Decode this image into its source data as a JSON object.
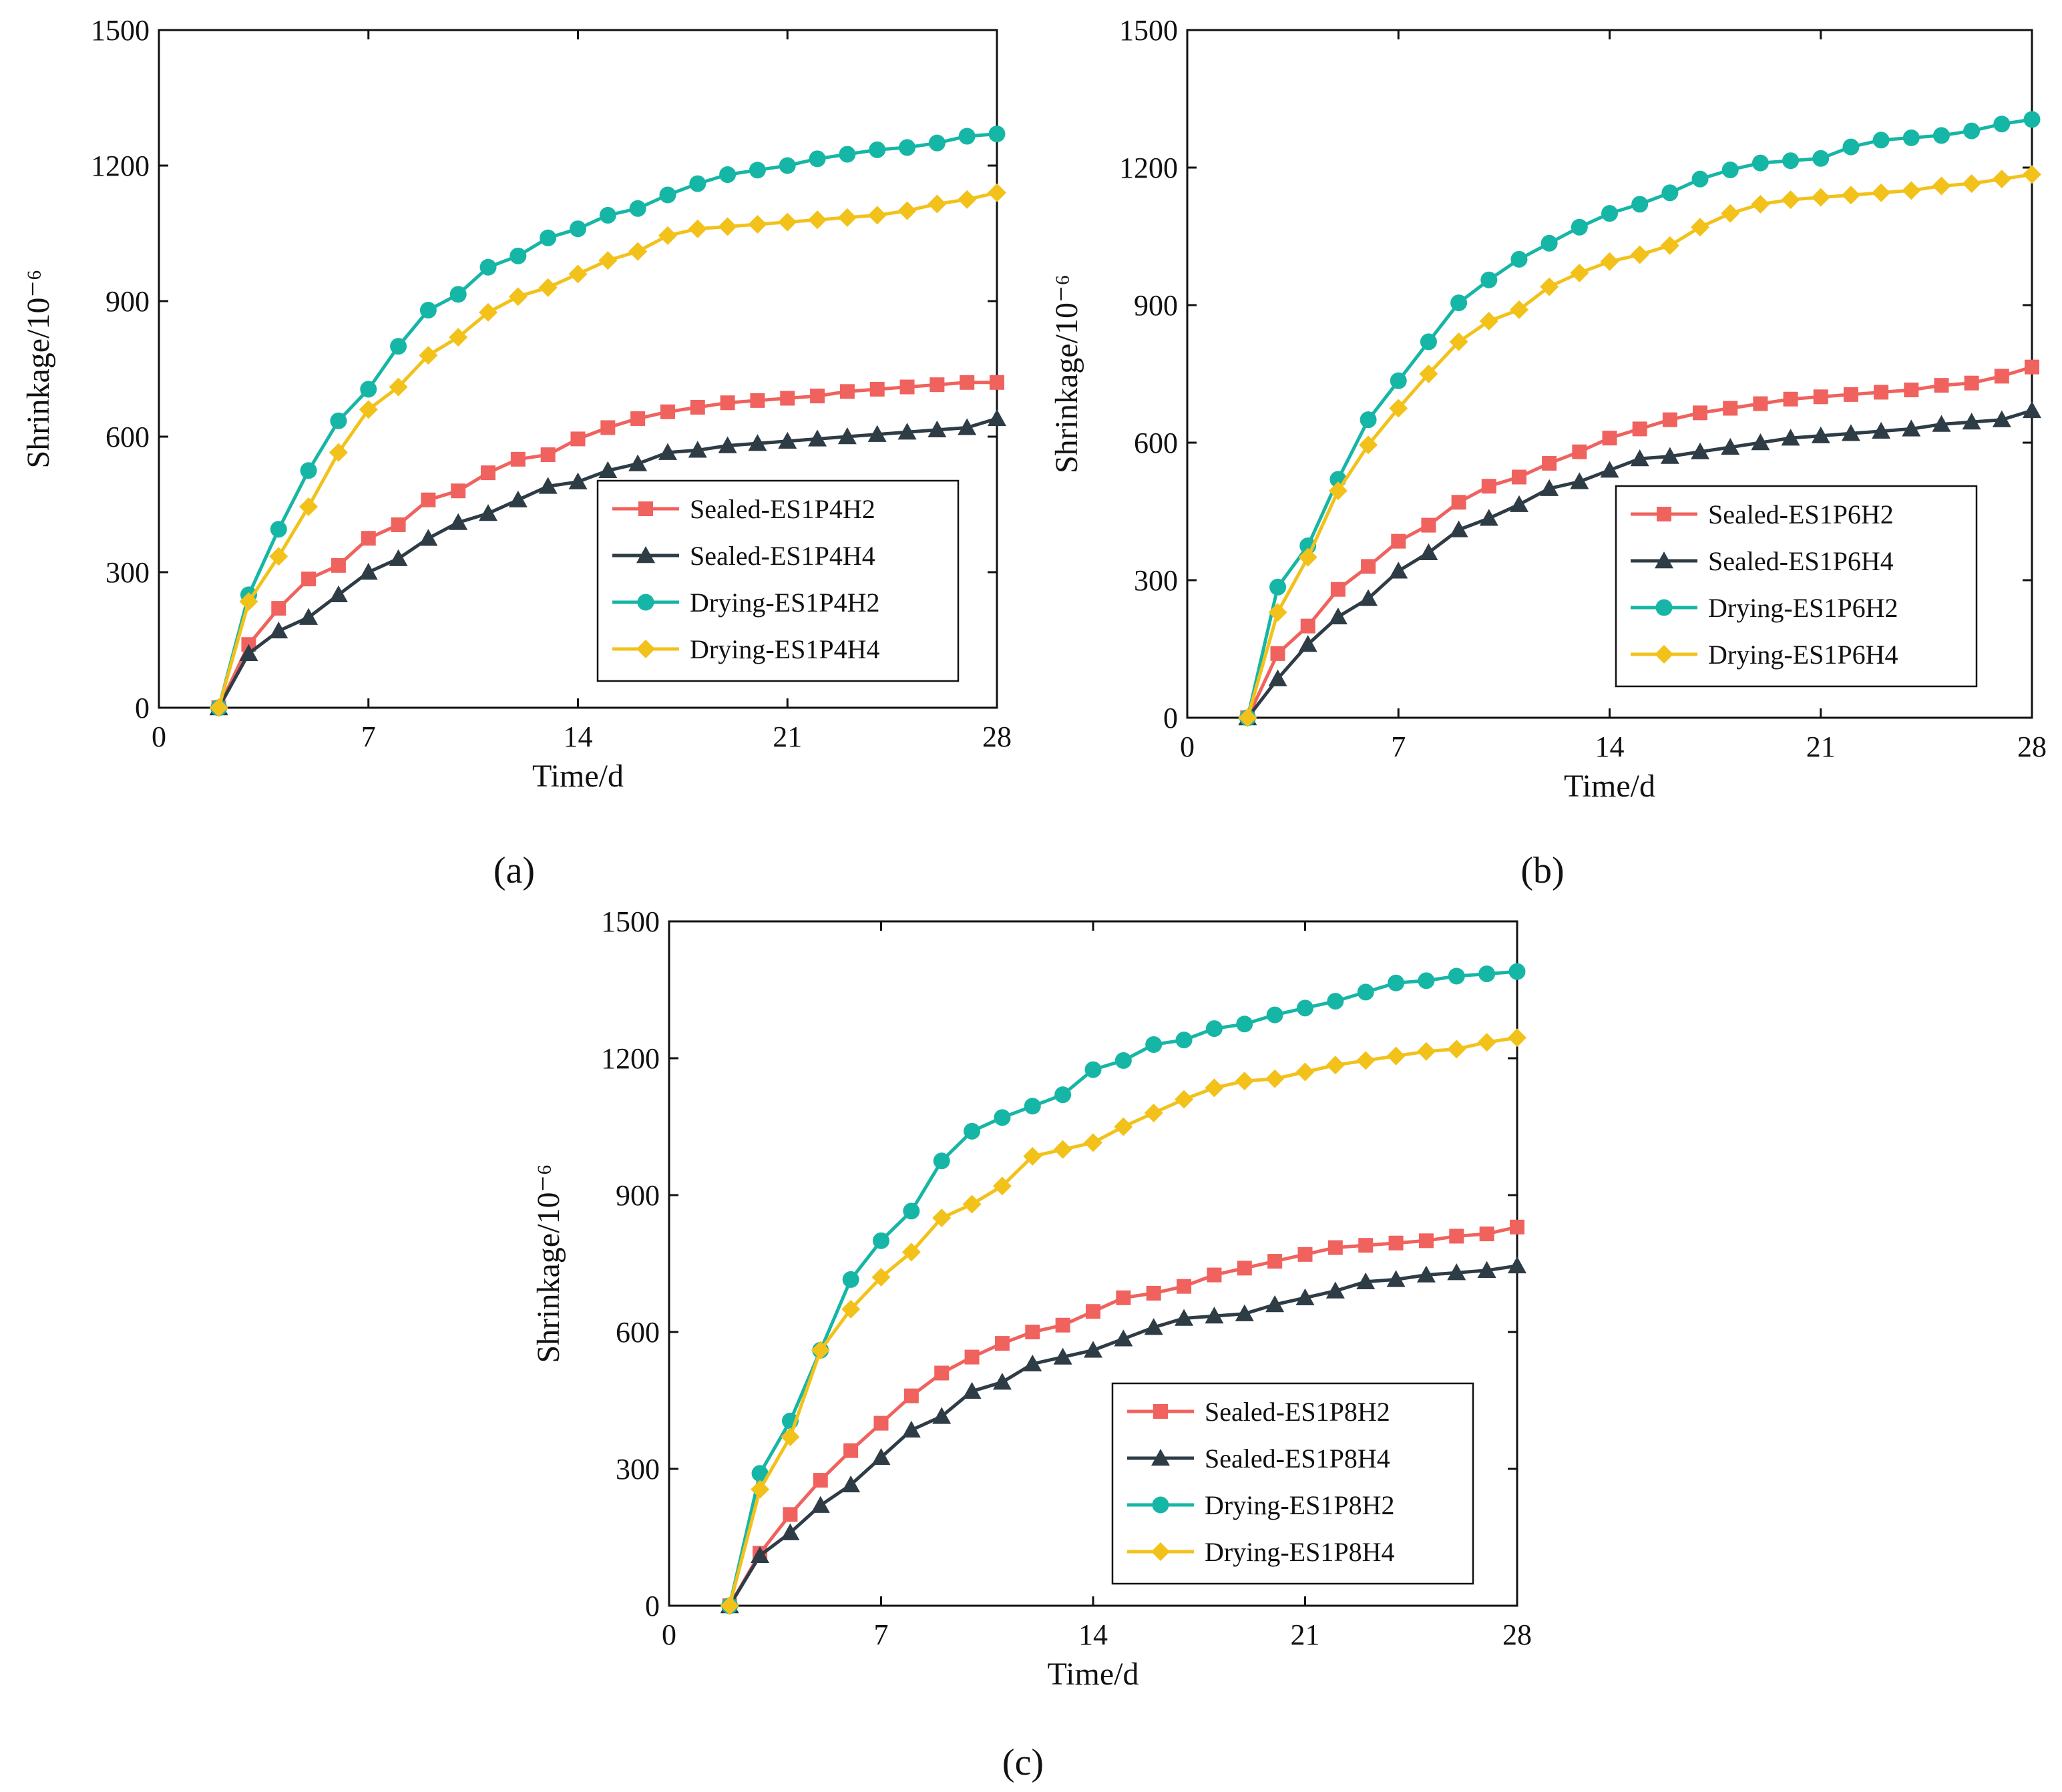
{
  "figure": {
    "panel_labels": [
      "(a)",
      "(b)",
      "(c)"
    ]
  },
  "colors": {
    "sealed_h2": "#F0625E",
    "sealed_h4": "#2E3C46",
    "drying_h2": "#16B6A6",
    "drying_h4": "#F2C21B"
  },
  "chart_data": [
    {
      "type": "line",
      "panel": "(a)",
      "xlabel": "Time/d",
      "ylabel": "Shrinkage/10⁻⁶",
      "xlim": [
        0,
        28
      ],
      "ylim": [
        0,
        1500
      ],
      "xticks": [
        0,
        7,
        14,
        21,
        28
      ],
      "yticks": [
        0,
        300,
        600,
        900,
        1200,
        1500
      ],
      "legend_position": "lower-right",
      "x": [
        2,
        3,
        4,
        5,
        6,
        7,
        8,
        9,
        10,
        11,
        12,
        13,
        14,
        15,
        16,
        17,
        18,
        19,
        20,
        21,
        22,
        23,
        24,
        25,
        26,
        27,
        28
      ],
      "series": [
        {
          "name": "Sealed-ES1P4H2",
          "marker": "square",
          "color_key": "sealed_h2",
          "values": [
            0,
            140,
            220,
            285,
            315,
            375,
            405,
            460,
            480,
            520,
            550,
            560,
            595,
            620,
            640,
            655,
            665,
            675,
            680,
            685,
            690,
            700,
            705,
            710,
            715,
            720,
            720
          ]
        },
        {
          "name": "Sealed-ES1P4H4",
          "marker": "triangle",
          "color_key": "sealed_h4",
          "values": [
            0,
            120,
            170,
            200,
            250,
            300,
            330,
            375,
            410,
            430,
            460,
            490,
            500,
            525,
            540,
            565,
            570,
            580,
            585,
            590,
            595,
            600,
            605,
            610,
            615,
            620,
            640
          ]
        },
        {
          "name": "Drying-ES1P4H2",
          "marker": "circle",
          "color_key": "drying_h2",
          "values": [
            0,
            250,
            395,
            525,
            635,
            705,
            800,
            880,
            915,
            975,
            1000,
            1040,
            1060,
            1090,
            1105,
            1135,
            1160,
            1180,
            1190,
            1200,
            1215,
            1225,
            1235,
            1240,
            1250,
            1265,
            1270
          ]
        },
        {
          "name": "Drying-ES1P4H4",
          "marker": "diamond",
          "color_key": "drying_h4",
          "values": [
            0,
            235,
            335,
            445,
            565,
            660,
            710,
            780,
            820,
            875,
            910,
            930,
            960,
            990,
            1010,
            1045,
            1060,
            1065,
            1070,
            1075,
            1080,
            1085,
            1090,
            1100,
            1115,
            1125,
            1140
          ]
        }
      ]
    },
    {
      "type": "line",
      "panel": "(b)",
      "xlabel": "Time/d",
      "ylabel": "Shrinkage/10⁻⁶",
      "xlim": [
        0,
        28
      ],
      "ylim": [
        0,
        1500
      ],
      "xticks": [
        0,
        7,
        14,
        21,
        28
      ],
      "yticks": [
        0,
        300,
        600,
        900,
        1200,
        1500
      ],
      "legend_position": "lower-right",
      "x": [
        2,
        3,
        4,
        5,
        6,
        7,
        8,
        9,
        10,
        11,
        12,
        13,
        14,
        15,
        16,
        17,
        18,
        19,
        20,
        21,
        22,
        23,
        24,
        25,
        26,
        27,
        28
      ],
      "series": [
        {
          "name": "Sealed-ES1P6H2",
          "marker": "square",
          "color_key": "sealed_h2",
          "values": [
            0,
            140,
            200,
            280,
            330,
            385,
            420,
            470,
            505,
            525,
            555,
            580,
            610,
            630,
            650,
            665,
            675,
            685,
            695,
            700,
            705,
            710,
            715,
            725,
            730,
            745,
            765
          ]
        },
        {
          "name": "Sealed-ES1P6H4",
          "marker": "triangle",
          "color_key": "sealed_h4",
          "values": [
            0,
            85,
            160,
            220,
            260,
            320,
            360,
            410,
            435,
            465,
            500,
            515,
            540,
            565,
            570,
            580,
            590,
            600,
            610,
            615,
            620,
            625,
            630,
            640,
            645,
            650,
            670
          ]
        },
        {
          "name": "Drying-ES1P6H2",
          "marker": "circle",
          "color_key": "drying_h2",
          "values": [
            0,
            285,
            375,
            520,
            650,
            735,
            820,
            905,
            955,
            1000,
            1035,
            1070,
            1100,
            1120,
            1145,
            1175,
            1195,
            1210,
            1215,
            1220,
            1245,
            1260,
            1265,
            1270,
            1280,
            1295,
            1305
          ]
        },
        {
          "name": "Drying-ES1P6H4",
          "marker": "diamond",
          "color_key": "drying_h4",
          "values": [
            0,
            230,
            350,
            495,
            595,
            675,
            750,
            820,
            865,
            890,
            940,
            970,
            995,
            1010,
            1030,
            1070,
            1100,
            1120,
            1130,
            1135,
            1140,
            1145,
            1150,
            1160,
            1165,
            1175,
            1185
          ]
        }
      ]
    },
    {
      "type": "line",
      "panel": "(c)",
      "xlabel": "Time/d",
      "ylabel": "Shrinkage/10⁻⁶",
      "xlim": [
        0,
        28
      ],
      "ylim": [
        0,
        1500
      ],
      "xticks": [
        0,
        7,
        14,
        21,
        28
      ],
      "yticks": [
        0,
        300,
        600,
        900,
        1200,
        1500
      ],
      "legend_position": "lower-right",
      "x": [
        2,
        3,
        4,
        5,
        6,
        7,
        8,
        9,
        10,
        11,
        12,
        13,
        14,
        15,
        16,
        17,
        18,
        19,
        20,
        21,
        22,
        23,
        24,
        25,
        26,
        27,
        28
      ],
      "series": [
        {
          "name": "Sealed-ES1P8H2",
          "marker": "square",
          "color_key": "sealed_h2",
          "values": [
            0,
            115,
            200,
            275,
            340,
            400,
            460,
            510,
            545,
            575,
            600,
            615,
            645,
            675,
            685,
            700,
            725,
            740,
            755,
            770,
            785,
            790,
            795,
            800,
            810,
            815,
            830
          ]
        },
        {
          "name": "Sealed-ES1P8H4",
          "marker": "triangle",
          "color_key": "sealed_h4",
          "values": [
            0,
            110,
            160,
            220,
            265,
            325,
            385,
            415,
            470,
            490,
            530,
            545,
            560,
            585,
            610,
            630,
            635,
            640,
            660,
            675,
            690,
            710,
            715,
            725,
            730,
            735,
            745
          ]
        },
        {
          "name": "Drying-ES1P8H2",
          "marker": "circle",
          "color_key": "drying_h2",
          "values": [
            0,
            290,
            405,
            560,
            715,
            800,
            865,
            975,
            1040,
            1070,
            1095,
            1120,
            1175,
            1195,
            1230,
            1240,
            1265,
            1275,
            1295,
            1310,
            1325,
            1345,
            1365,
            1370,
            1380,
            1385,
            1390
          ]
        },
        {
          "name": "Drying-ES1P8H4",
          "marker": "diamond",
          "color_key": "drying_h4",
          "values": [
            0,
            255,
            370,
            560,
            650,
            720,
            775,
            850,
            880,
            920,
            985,
            1000,
            1015,
            1050,
            1080,
            1110,
            1135,
            1150,
            1155,
            1170,
            1185,
            1195,
            1205,
            1215,
            1220,
            1235,
            1245
          ]
        }
      ]
    }
  ]
}
